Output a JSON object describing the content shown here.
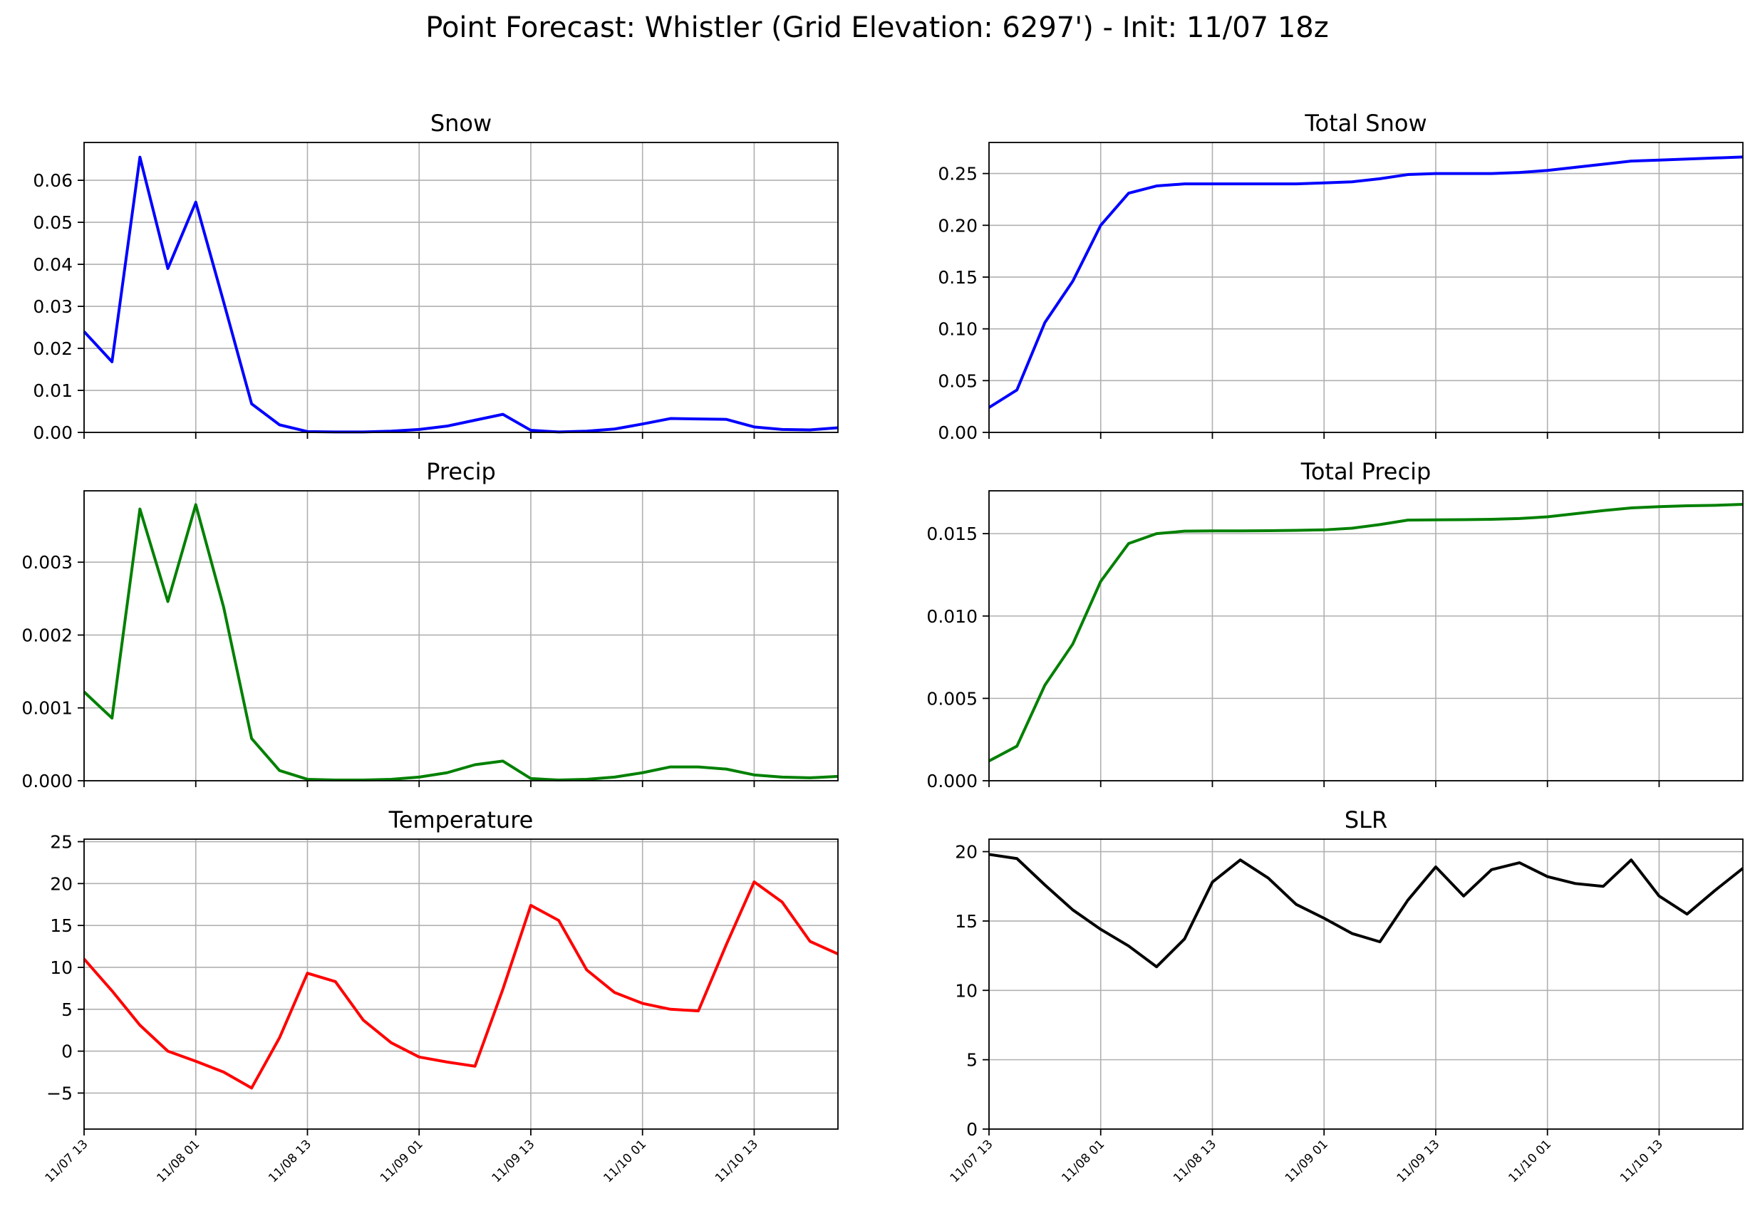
{
  "figure_title": "Point Forecast: Whistler (Grid Elevation: 6297') - Init: 11/07 18z",
  "x_tick_labels": [
    "11/07 13",
    "11/08 01",
    "11/08 13",
    "11/09 01",
    "11/09 13",
    "11/10 01",
    "11/10 13"
  ],
  "chart_data": [
    {
      "type": "line",
      "title": "Snow",
      "color": "#0000ff",
      "x_step_hours": 3,
      "x_start": "11/07 13",
      "ylim": [
        0,
        0.069
      ],
      "yticks": [
        0.0,
        0.01,
        0.02,
        0.03,
        0.04,
        0.05,
        0.06
      ],
      "ytick_labels": [
        "0.00",
        "0.01",
        "0.02",
        "0.03",
        "0.04",
        "0.05",
        "0.06"
      ],
      "grid": true,
      "values": [
        0.024,
        0.0168,
        0.0655,
        0.039,
        0.0548,
        0.031,
        0.0068,
        0.0018,
        0.0002,
        0.0001,
        0.0001,
        0.0003,
        0.0007,
        0.0015,
        0.0029,
        0.0043,
        0.0005,
        0.0001,
        0.0003,
        0.0008,
        0.002,
        0.0033,
        0.0032,
        0.0031,
        0.0013,
        0.0007,
        0.0006,
        0.0011
      ]
    },
    {
      "type": "line",
      "title": "Total Snow",
      "color": "#0000ff",
      "x_step_hours": 3,
      "x_start": "11/07 13",
      "ylim": [
        0,
        0.28
      ],
      "yticks": [
        0.0,
        0.05,
        0.1,
        0.15,
        0.2,
        0.25
      ],
      "ytick_labels": [
        "0.00",
        "0.05",
        "0.10",
        "0.15",
        "0.20",
        "0.25"
      ],
      "grid": true,
      "values": [
        0.024,
        0.041,
        0.106,
        0.146,
        0.2,
        0.231,
        0.238,
        0.24,
        0.24,
        0.24,
        0.24,
        0.24,
        0.241,
        0.242,
        0.245,
        0.249,
        0.25,
        0.25,
        0.25,
        0.251,
        0.253,
        0.256,
        0.259,
        0.262,
        0.263,
        0.264,
        0.265,
        0.266
      ]
    },
    {
      "type": "line",
      "title": "Precip",
      "color": "#008000",
      "x_step_hours": 3,
      "x_start": "11/07 13",
      "ylim": [
        0,
        0.00398
      ],
      "yticks": [
        0.0,
        0.001,
        0.002,
        0.003
      ],
      "ytick_labels": [
        "0.000",
        "0.001",
        "0.002",
        "0.003"
      ],
      "grid": true,
      "values": [
        0.00122,
        0.00086,
        0.00373,
        0.00246,
        0.00379,
        0.00238,
        0.00058,
        0.00014,
        2e-05,
        1e-05,
        1e-05,
        2e-05,
        5e-05,
        0.00011,
        0.00022,
        0.00027,
        3e-05,
        1e-05,
        2e-05,
        5e-05,
        0.00011,
        0.00019,
        0.00019,
        0.00016,
        8e-05,
        5e-05,
        4e-05,
        6e-05
      ]
    },
    {
      "type": "line",
      "title": "Total Precip",
      "color": "#008000",
      "x_step_hours": 3,
      "x_start": "11/07 13",
      "ylim": [
        0,
        0.0176
      ],
      "yticks": [
        0.0,
        0.005,
        0.01,
        0.015
      ],
      "ytick_labels": [
        "0.000",
        "0.005",
        "0.010",
        "0.015"
      ],
      "grid": true,
      "values": [
        0.0012,
        0.0021,
        0.0058,
        0.0083,
        0.0121,
        0.0144,
        0.015,
        0.01515,
        0.01517,
        0.01517,
        0.01518,
        0.0152,
        0.01523,
        0.01533,
        0.01555,
        0.01582,
        0.01584,
        0.01585,
        0.01587,
        0.01592,
        0.01602,
        0.01621,
        0.0164,
        0.01656,
        0.01664,
        0.01669,
        0.01672,
        0.01678
      ]
    },
    {
      "type": "line",
      "title": "Temperature",
      "color": "#ff0000",
      "x_step_hours": 3,
      "x_start": "11/07 13",
      "ylim": [
        -9.3,
        25.3
      ],
      "yticks": [
        -5,
        0,
        5,
        10,
        15,
        20,
        25
      ],
      "ytick_labels": [
        "−5",
        "0",
        "5",
        "10",
        "15",
        "20",
        "25"
      ],
      "grid": true,
      "values": [
        11,
        7.2,
        3.1,
        0,
        -1.2,
        -2.5,
        -4.4,
        1.6,
        9.3,
        8.3,
        3.7,
        1,
        -0.7,
        -1.3,
        -1.8,
        7.4,
        17.4,
        15.6,
        9.7,
        7,
        5.7,
        5,
        4.8,
        12.7,
        20.2,
        17.8,
        13.1,
        11.6
      ]
    },
    {
      "type": "line",
      "title": "SLR",
      "color": "#000000",
      "x_step_hours": 3,
      "x_start": "11/07 13",
      "ylim": [
        0,
        20.9
      ],
      "yticks": [
        0,
        5,
        10,
        15,
        20
      ],
      "ytick_labels": [
        "0",
        "5",
        "10",
        "15",
        "20"
      ],
      "grid": true,
      "values": [
        19.8,
        19.5,
        17.6,
        15.8,
        14.4,
        13.2,
        11.7,
        13.7,
        17.8,
        19.4,
        18.1,
        16.2,
        15.2,
        14.1,
        13.5,
        16.5,
        18.9,
        16.8,
        18.7,
        19.2,
        18.2,
        17.7,
        17.5,
        19.4,
        16.8,
        15.5,
        17.2,
        18.8
      ]
    }
  ]
}
